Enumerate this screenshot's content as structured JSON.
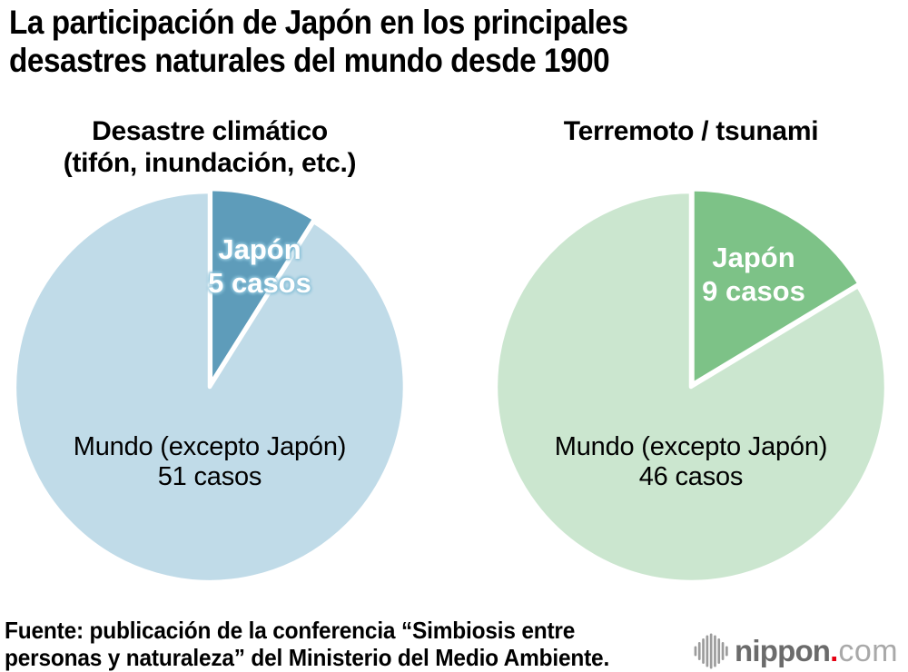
{
  "title": {
    "line1": "La participación de Japón en los principales",
    "line2": "desastres naturales del mundo desde 1900"
  },
  "charts": [
    {
      "heading_line1": "Desastre climático",
      "heading_line2": "(tifón, inundación, etc.)",
      "japan_label": "Japón",
      "japan_value_label": "5 casos",
      "world_label": "Mundo (excepto Japón)",
      "world_value_label": "51 casos",
      "colors": {
        "japan": "#5e9cba",
        "world": "#c0dbe8"
      }
    },
    {
      "heading_line1": "Terremoto / tsunami",
      "heading_line2": "",
      "japan_label": "Japón",
      "japan_value_label": "9 casos",
      "world_label": "Mundo (excepto Japón)",
      "world_value_label": "46 casos",
      "colors": {
        "japan": "#7dc287",
        "world": "#cbe6cf"
      }
    }
  ],
  "chart_data": [
    {
      "type": "pie",
      "title": "Desastre climático (tifón, inundación, etc.)",
      "slices": [
        {
          "label": "Japón",
          "value": 5,
          "color": "#5e9cba"
        },
        {
          "label": "Mundo (excepto Japón)",
          "value": 51,
          "color": "#c0dbe8"
        }
      ],
      "start_angle_deg": 0,
      "direction": "clockwise",
      "labels_on_chart": true
    },
    {
      "type": "pie",
      "title": "Terremoto / tsunami",
      "slices": [
        {
          "label": "Japón",
          "value": 9,
          "color": "#7dc287"
        },
        {
          "label": "Mundo (excepto Japón)",
          "value": 46,
          "color": "#cbe6cf"
        }
      ],
      "start_angle_deg": 0,
      "direction": "clockwise",
      "labels_on_chart": true
    }
  ],
  "footer": {
    "source_line1": "Fuente: publicación de la conferencia “Simbiosis entre",
    "source_line2": "personas y naturaleza” del Ministerio del Medio Ambiente."
  },
  "logo": {
    "name": "nippon",
    "dot": ".",
    "tld": "com",
    "icon": "soundwave-bars-icon",
    "dot_color": "#e60012"
  }
}
